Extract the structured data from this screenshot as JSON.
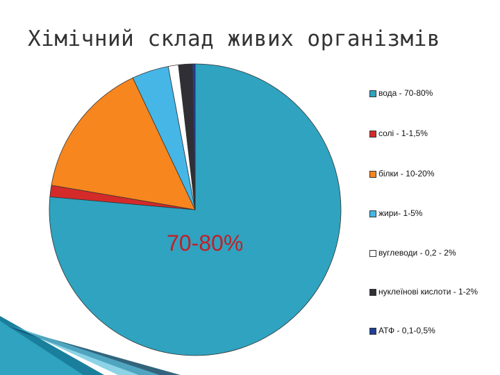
{
  "title": "Хімічний склад живих організмів",
  "big_label": "70-80%",
  "chart_data": {
    "type": "pie",
    "slices": [
      {
        "label": "вода - 70-80%",
        "value": 75.0,
        "color": "#2fa3bf"
      },
      {
        "label": "солі - 1-1,5%",
        "value": 1.25,
        "color": "#d42a2a"
      },
      {
        "label": "білки - 10-20%",
        "value": 15.0,
        "color": "#f7861e"
      },
      {
        "label": "жири- 1-5%",
        "value": 4.0,
        "color": "#45b6e6"
      },
      {
        "label": "вуглеводи - 0,2 - 2%",
        "value": 1.1,
        "color": "#ffffff"
      },
      {
        "label": "нуклеїнові кислоти - 1-2%",
        "value": 1.5,
        "color": "#2f2f35"
      },
      {
        "label": "АТФ - 0,1-0,5%",
        "value": 0.3,
        "color": "#1f3f9a"
      }
    ],
    "legend_position": "right",
    "start": "top",
    "direction": "clockwise"
  },
  "colors": {
    "title": "#333333",
    "big_label": "#c0202a",
    "decoration": "#1a7f9c"
  }
}
